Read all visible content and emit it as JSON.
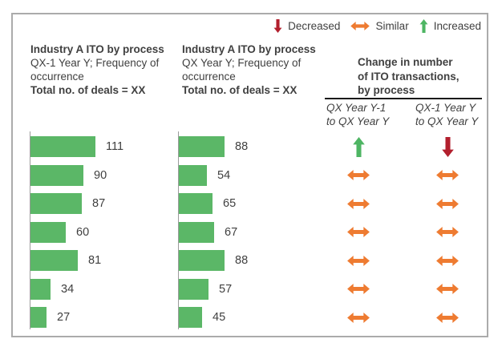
{
  "colors": {
    "bar": "#5bb767",
    "increased": "#4eb563",
    "decreased": "#b21f2d",
    "similar": "#ee7b31",
    "axis": "#9b9b9b",
    "frame_border": "#ababab"
  },
  "legend": {
    "items": [
      {
        "id": "decreased",
        "label": "Decreased",
        "arrow": "down",
        "color": "#b21f2d"
      },
      {
        "id": "similar",
        "label": "Similar",
        "arrow": "left-right",
        "color": "#ee7b31"
      },
      {
        "id": "increased",
        "label": "Increased",
        "arrow": "up",
        "color": "#4eb563"
      }
    ]
  },
  "changes": {
    "title_lines": [
      "Change in number",
      "of ITO transactions,",
      "by process"
    ],
    "columns": [
      {
        "lines": [
          "QX Year Y-1",
          "to QX Year Y"
        ]
      },
      {
        "lines": [
          "QX-1 Year Y",
          "to QX Year Y"
        ]
      }
    ]
  },
  "chart_data": [
    {
      "type": "bar",
      "orientation": "horizontal",
      "title": "Industry A ITO by process",
      "subtitle": "QX-1 Year Y; Frequency of occurrence",
      "annotation": "Total no. of deals = XX",
      "categories": [
        "",
        "",
        "",
        "",
        "",
        "",
        ""
      ],
      "values": [
        111,
        90,
        87,
        60,
        81,
        34,
        27
      ],
      "bar_color": "#5bb767",
      "value_labels_shown": true,
      "xlabel": "",
      "ylabel": ""
    },
    {
      "type": "bar",
      "orientation": "horizontal",
      "title": "Industry A ITO by process",
      "subtitle": "QX Year Y; Frequency of occurrence",
      "annotation": "Total no. of deals = XX",
      "categories": [
        "",
        "",
        "",
        "",
        "",
        "",
        ""
      ],
      "values": [
        88,
        54,
        65,
        67,
        88,
        57,
        45
      ],
      "bar_color": "#5bb767",
      "value_labels_shown": true,
      "xlabel": "",
      "ylabel": ""
    },
    {
      "type": "table",
      "title": "Change in number of ITO transactions, by process",
      "columns": [
        "QX Year Y-1 to QX Year Y",
        "QX-1 Year Y to QX Year Y"
      ],
      "rows": [
        [
          "increased",
          "decreased"
        ],
        [
          "similar",
          "similar"
        ],
        [
          "similar",
          "similar"
        ],
        [
          "similar",
          "similar"
        ],
        [
          "similar",
          "similar"
        ],
        [
          "similar",
          "similar"
        ],
        [
          "similar",
          "similar"
        ]
      ],
      "legend_position": "top-right"
    }
  ]
}
